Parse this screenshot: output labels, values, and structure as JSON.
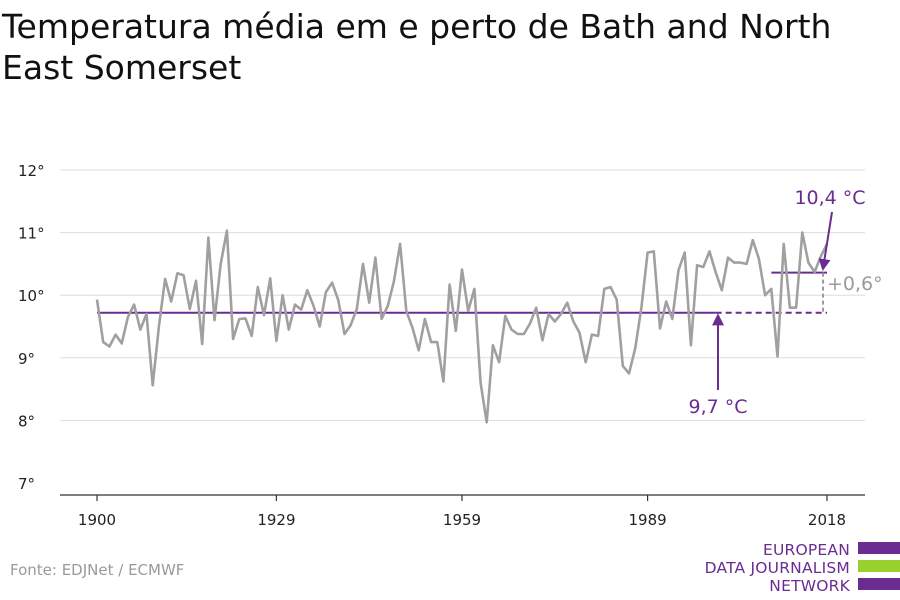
{
  "title": "Temperatura média em e perto de Bath and North East Somerset",
  "source": "Fonte: EDJNet / ECMWF",
  "logo": {
    "lines": [
      "EUROPEAN",
      "DATA JOURNALISM",
      "NETWORK"
    ],
    "colors": [
      "#6a2c91",
      "#9ad12d",
      "#6a2c91"
    ]
  },
  "colors": {
    "series": "#a0a0a0",
    "baseline": "#6a2c91",
    "annotation": "#6a2c91",
    "delta": "#9a9a9a",
    "grid": "#dddddd",
    "axis": "#333333"
  },
  "chart_data": {
    "type": "line",
    "title": "Temperatura média em e perto de Bath and North East Somerset",
    "xlabel": "",
    "ylabel": "",
    "xlim": [
      1900,
      2018
    ],
    "ylim": [
      7,
      12
    ],
    "xticks": [
      1900,
      1929,
      1959,
      1989,
      2018
    ],
    "yticks": [
      7,
      8,
      9,
      10,
      11,
      12
    ],
    "ytick_labels": [
      "7°",
      "8°",
      "9°",
      "10°",
      "11°",
      "12°"
    ],
    "grid": true,
    "series": [
      {
        "x": [
          1900,
          1901,
          1902,
          1903,
          1904,
          1905,
          1906,
          1907,
          1908,
          1909,
          1910,
          1911,
          1912,
          1913,
          1914,
          1915,
          1916,
          1917,
          1918,
          1919,
          1920,
          1921,
          1922,
          1923,
          1924,
          1925,
          1926,
          1927,
          1928,
          1929,
          1930,
          1931,
          1932,
          1933,
          1934,
          1935,
          1936,
          1937,
          1938,
          1939,
          1940,
          1941,
          1942,
          1943,
          1944,
          1945,
          1946,
          1947,
          1948,
          1949,
          1950,
          1951,
          1952,
          1953,
          1954,
          1955,
          1956,
          1957,
          1958,
          1959,
          1960,
          1961,
          1962,
          1963,
          1964,
          1965,
          1966,
          1967,
          1968,
          1969,
          1970,
          1971,
          1972,
          1973,
          1974,
          1975,
          1976,
          1977,
          1978,
          1979,
          1980,
          1981,
          1982,
          1983,
          1984,
          1985,
          1986,
          1987,
          1988,
          1989,
          1990,
          1991,
          1992,
          1993,
          1994,
          1995,
          1996,
          1997,
          1998,
          1999,
          2000,
          2001,
          2002,
          2003,
          2004,
          2005,
          2006,
          2007,
          2008,
          2009,
          2010,
          2011,
          2012,
          2013,
          2014,
          2015,
          2016,
          2017,
          2018
        ],
        "y": [
          9.93,
          9.25,
          9.18,
          9.37,
          9.23,
          9.65,
          9.85,
          9.45,
          9.7,
          8.56,
          9.5,
          10.26,
          9.9,
          10.35,
          10.32,
          9.78,
          10.23,
          9.22,
          10.92,
          9.6,
          10.5,
          11.03,
          9.3,
          9.62,
          9.63,
          9.35,
          10.13,
          9.68,
          10.27,
          9.27,
          10.0,
          9.45,
          9.85,
          9.77,
          10.08,
          9.83,
          9.5,
          10.05,
          10.2,
          9.92,
          9.38,
          9.52,
          9.78,
          10.5,
          9.88,
          10.6,
          9.62,
          9.83,
          10.22,
          10.82,
          9.75,
          9.48,
          9.12,
          9.62,
          9.25,
          9.25,
          8.62,
          10.17,
          9.43,
          10.41,
          9.75,
          10.1,
          8.6,
          7.97,
          9.2,
          8.93,
          9.67,
          9.45,
          9.38,
          9.38,
          9.55,
          9.8,
          9.28,
          9.7,
          9.58,
          9.7,
          9.88,
          9.58,
          9.4,
          8.93,
          9.37,
          9.35,
          10.1,
          10.13,
          9.93,
          8.87,
          8.75,
          9.15,
          9.8,
          10.68,
          10.7,
          9.47,
          9.9,
          9.62,
          10.4,
          10.68,
          9.2,
          10.48,
          10.45,
          10.7,
          10.37,
          10.08,
          10.6,
          10.52,
          10.52,
          10.5,
          10.88,
          10.58,
          10.0,
          10.1,
          9.02,
          10.82,
          9.8,
          9.8,
          11.0,
          10.52,
          10.37,
          10.62,
          10.82
        ]
      }
    ],
    "baselines": [
      {
        "label": "9,7 °C",
        "value": 9.72,
        "x_from": 1900,
        "x_to": 2018
      },
      {
        "label": "10,4 °C",
        "value": 10.36,
        "x_from": 2009,
        "x_to": 2018
      }
    ],
    "delta_label": "+0,6°"
  }
}
